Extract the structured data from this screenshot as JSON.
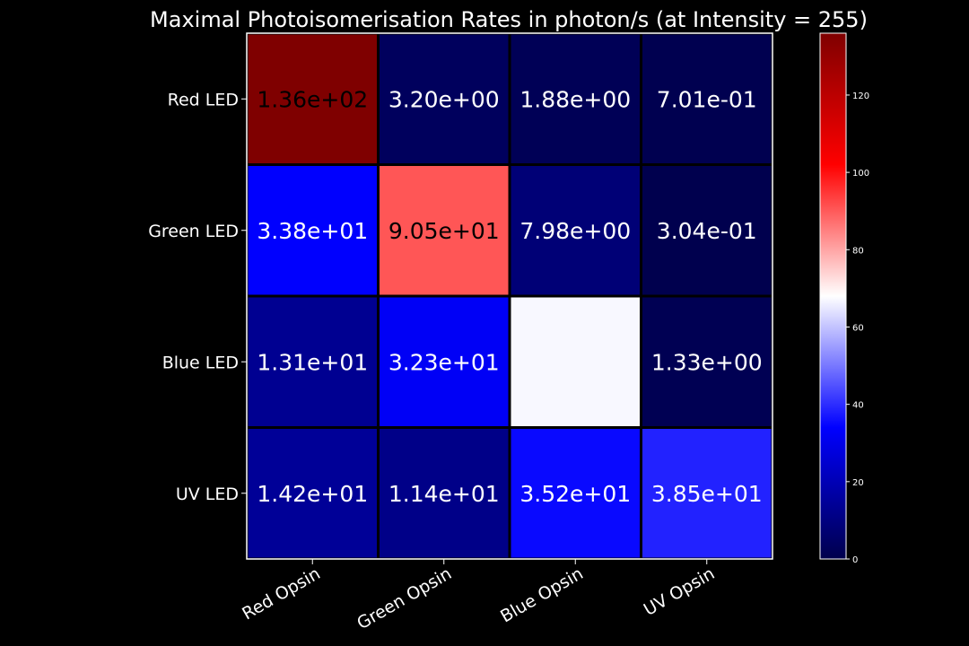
{
  "chart_data": {
    "type": "heatmap",
    "title": "Maximal Photoisomerisation Rates in photon/s (at Intensity = 255)",
    "rows": [
      "Red LED",
      "Green LED",
      "Blue LED",
      "UV LED"
    ],
    "columns": [
      "Red Opsin",
      "Green Opsin",
      "Blue Opsin",
      "UV Opsin"
    ],
    "values": [
      [
        136,
        3.2,
        1.88,
        0.701
      ],
      [
        33.8,
        90.5,
        7.98,
        0.304
      ],
      [
        13.1,
        32.3,
        67.0,
        1.33
      ],
      [
        14.2,
        11.4,
        35.2,
        38.5
      ]
    ],
    "labels": [
      [
        "1.36e+02",
        "3.20e+00",
        "1.88e+00",
        "7.01e-01"
      ],
      [
        "3.38e+01",
        "9.05e+01",
        "7.98e+00",
        "3.04e-01"
      ],
      [
        "1.31e+01",
        "3.23e+01",
        "",
        "1.33e+00"
      ],
      [
        "1.42e+01",
        "1.14e+01",
        "3.52e+01",
        "3.85e+01"
      ]
    ],
    "label_colors": [
      [
        "#000000",
        "#ffffff",
        "#ffffff",
        "#ffffff"
      ],
      [
        "#ffffff",
        "#000000",
        "#ffffff",
        "#ffffff"
      ],
      [
        "#ffffff",
        "#ffffff",
        "#ffffff",
        "#ffffff"
      ],
      [
        "#ffffff",
        "#ffffff",
        "#ffffff",
        "#ffffff"
      ]
    ],
    "colormap": "seismic",
    "vmin": 0,
    "vmax": 136,
    "colorbar_ticks": [
      0,
      20,
      40,
      60,
      80,
      100,
      120
    ],
    "colorbar_tick_labels": [
      "0",
      "20",
      "40",
      "60",
      "80",
      "100",
      "120"
    ],
    "colors": {
      "background": "#000000",
      "text": "#ffffff",
      "grid": "#ffffff"
    }
  }
}
